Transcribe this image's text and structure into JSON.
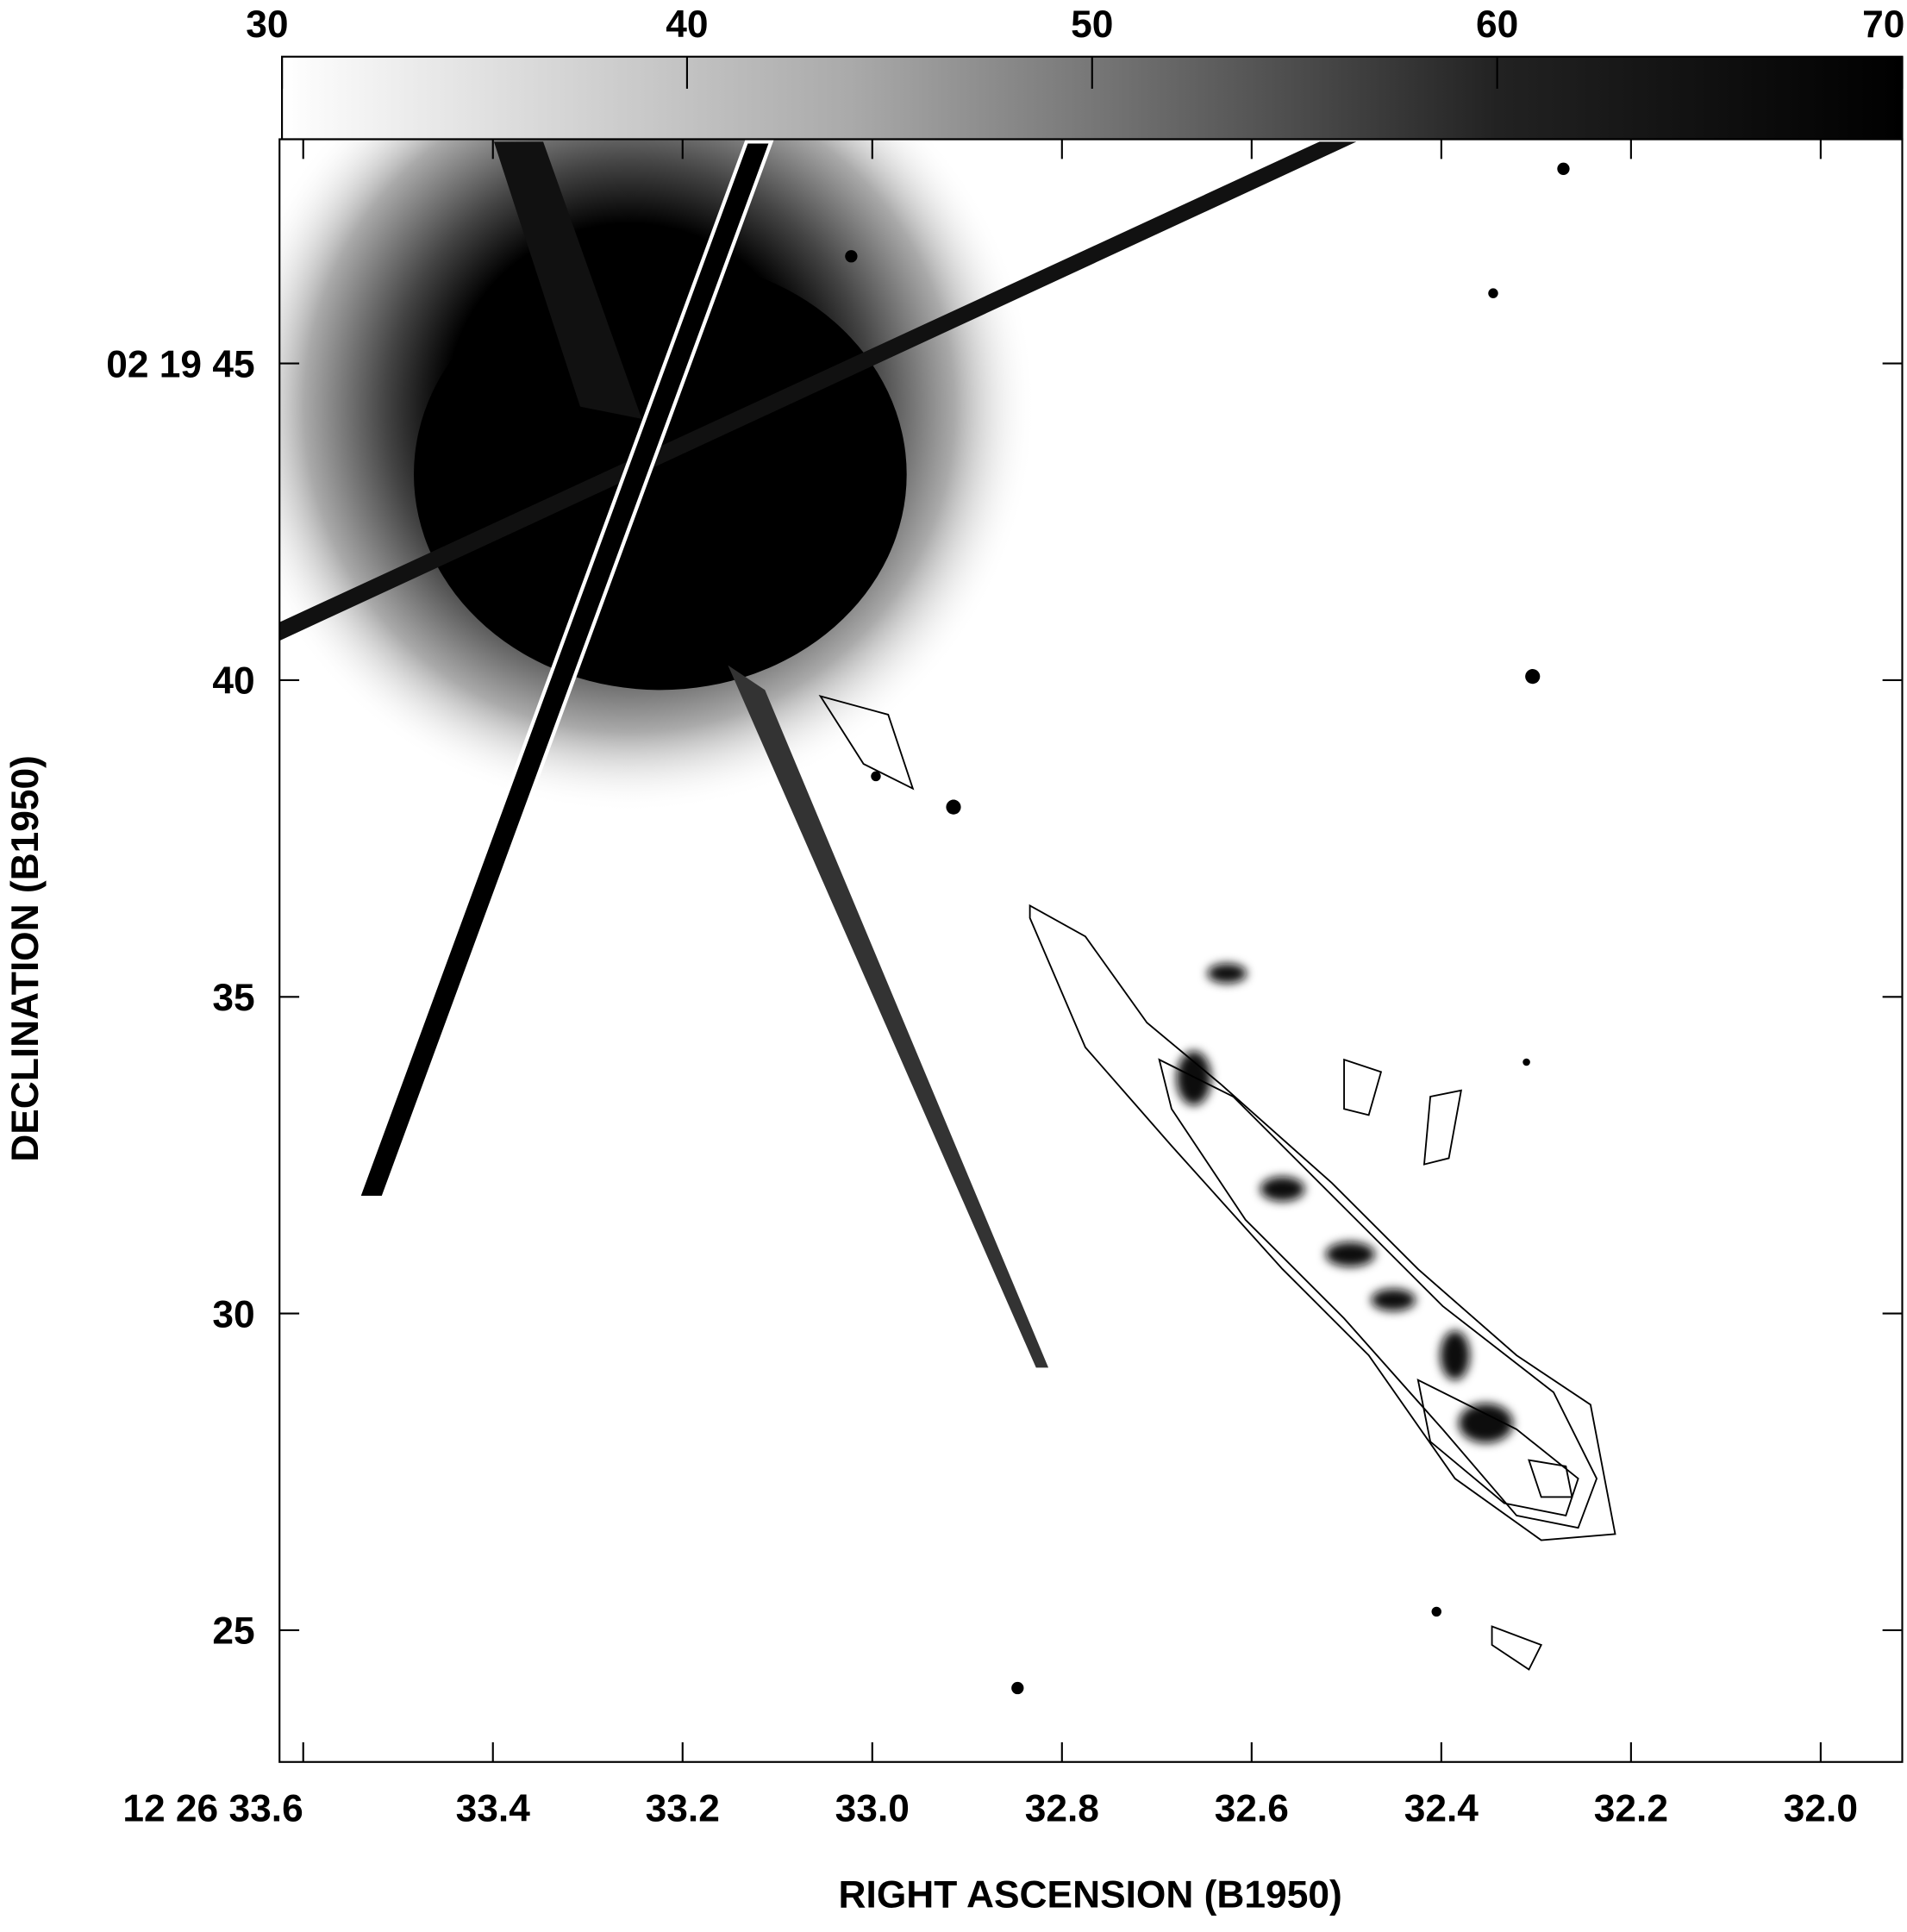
{
  "chart_data": {
    "type": "image",
    "xlabel": "RIGHT  ASCENSION  (B1950)",
    "ylabel": "DECLINATION  (B1950)",
    "xlim": [
      33.625,
      31.914
    ],
    "ylim": [
      22.92,
      48.54
    ],
    "xticks": [
      {
        "value": 33.6,
        "label": "12  26  33.6"
      },
      33.4,
      33.2,
      {
        "value": 33,
        "label": "33.0"
      },
      32.8,
      32.6,
      32.4,
      32.2,
      {
        "value": 32,
        "label": "32.0"
      }
    ],
    "yticks": [
      25,
      30,
      35,
      40,
      {
        "value": 45,
        "label": "02  19  45"
      }
    ],
    "colorbar": {
      "lim": [
        30,
        70
      ],
      "ticks": [
        30,
        40,
        50,
        60,
        70
      ]
    }
  }
}
